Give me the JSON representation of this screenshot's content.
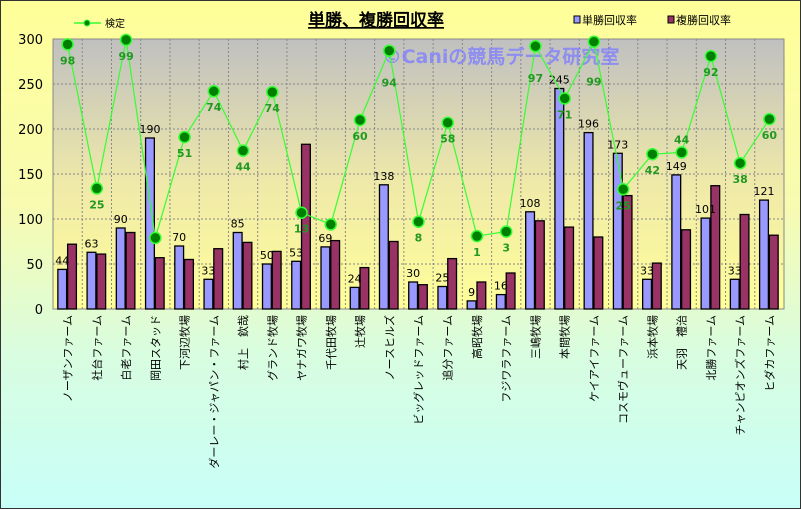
{
  "chart_data": {
    "type": "bar",
    "title": "単勝、複勝回収率",
    "watermark": "©Caniの競馬データ研究室",
    "ylim": [
      0,
      300
    ],
    "yticks": [
      0,
      50,
      100,
      150,
      200,
      250,
      300
    ],
    "grid": true,
    "legend_placement": "top",
    "categories": [
      "ノーザンファーム",
      "社台ファーム",
      "白老ファーム",
      "岡田スタッド",
      "下河辺牧場",
      "ダーレー・ジャパン・ファーム",
      "村上　欽哉",
      "グランド牧場",
      "ヤナガワ牧場",
      "千代田牧場",
      "辻牧場",
      "ノースヒルズ",
      "ビッグレッドファーム",
      "追分ファーム",
      "高昭牧場",
      "フジワラファーム",
      "三嶋牧場",
      "本間牧場",
      "ケイアイファーム",
      "コスモヴューファーム",
      "浜本牧場",
      "天羽　禮治",
      "北勝ファーム",
      "チャンピオンズファーム",
      "ヒダカファーム"
    ],
    "series": [
      {
        "name": "単勝回収率",
        "type": "bar",
        "color": "#9999ff",
        "values": [
          44,
          63,
          90,
          190,
          70,
          33,
          85,
          50,
          53,
          69,
          24,
          138,
          30,
          25,
          9,
          16,
          108,
          245,
          196,
          173,
          33,
          149,
          101,
          33,
          121
        ],
        "labels": [
          "44",
          "63",
          "90",
          "190",
          "70",
          "33",
          "85",
          "50",
          "53",
          "69",
          "24",
          "138",
          "30",
          "25",
          "9",
          "16",
          "108",
          "245",
          "196",
          "173",
          "33",
          "149",
          "101",
          "33",
          "121"
        ]
      },
      {
        "name": "複勝回収率",
        "type": "bar",
        "color": "#993366",
        "values": [
          72,
          61,
          85,
          57,
          55,
          67,
          74,
          64,
          183,
          76,
          46,
          75,
          27,
          56,
          30,
          40,
          98,
          91,
          80,
          126,
          51,
          88,
          137,
          105,
          82
        ]
      },
      {
        "name": "検定",
        "type": "line",
        "color": "#33ff33",
        "marker_color": "#008000",
        "values": [
          294,
          134,
          299,
          79,
          191,
          242,
          176,
          241,
          107,
          94,
          210,
          287,
          97,
          207,
          81,
          86,
          292,
          234,
          297,
          133,
          172,
          174,
          281,
          162,
          211
        ],
        "labels": [
          "98",
          "25",
          "99",
          "",
          "51",
          "74",
          "44",
          "74",
          "13",
          "",
          "60",
          "94",
          "8",
          "58",
          "1",
          "3",
          "97",
          "71",
          "99",
          "25",
          "42",
          "44",
          "92",
          "38",
          "60"
        ]
      }
    ]
  }
}
